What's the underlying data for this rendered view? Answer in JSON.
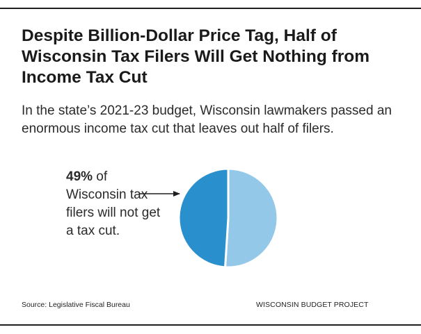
{
  "title": "Despite Billion-Dollar Price Tag, Half of Wisconsin Tax Filers Will Get Nothing from Income Tax Cut",
  "subtitle": "In the state’s 2021-23 budget, Wisconsin lawmakers passed an enormous income tax cut that leaves out half of filers.",
  "callout": {
    "value": "49%",
    "text": " of Wisconsin tax filers will not get a tax cut."
  },
  "footer": {
    "source": "Source: Legislative Fiscal Bureau",
    "org": "WISCONSIN BUDGET PROJECT"
  },
  "chart_data": {
    "type": "pie",
    "title": "",
    "slices": [
      {
        "value": 51,
        "color": "#94c8e8"
      },
      {
        "value": 49,
        "color": "#2a8fcd"
      }
    ]
  }
}
